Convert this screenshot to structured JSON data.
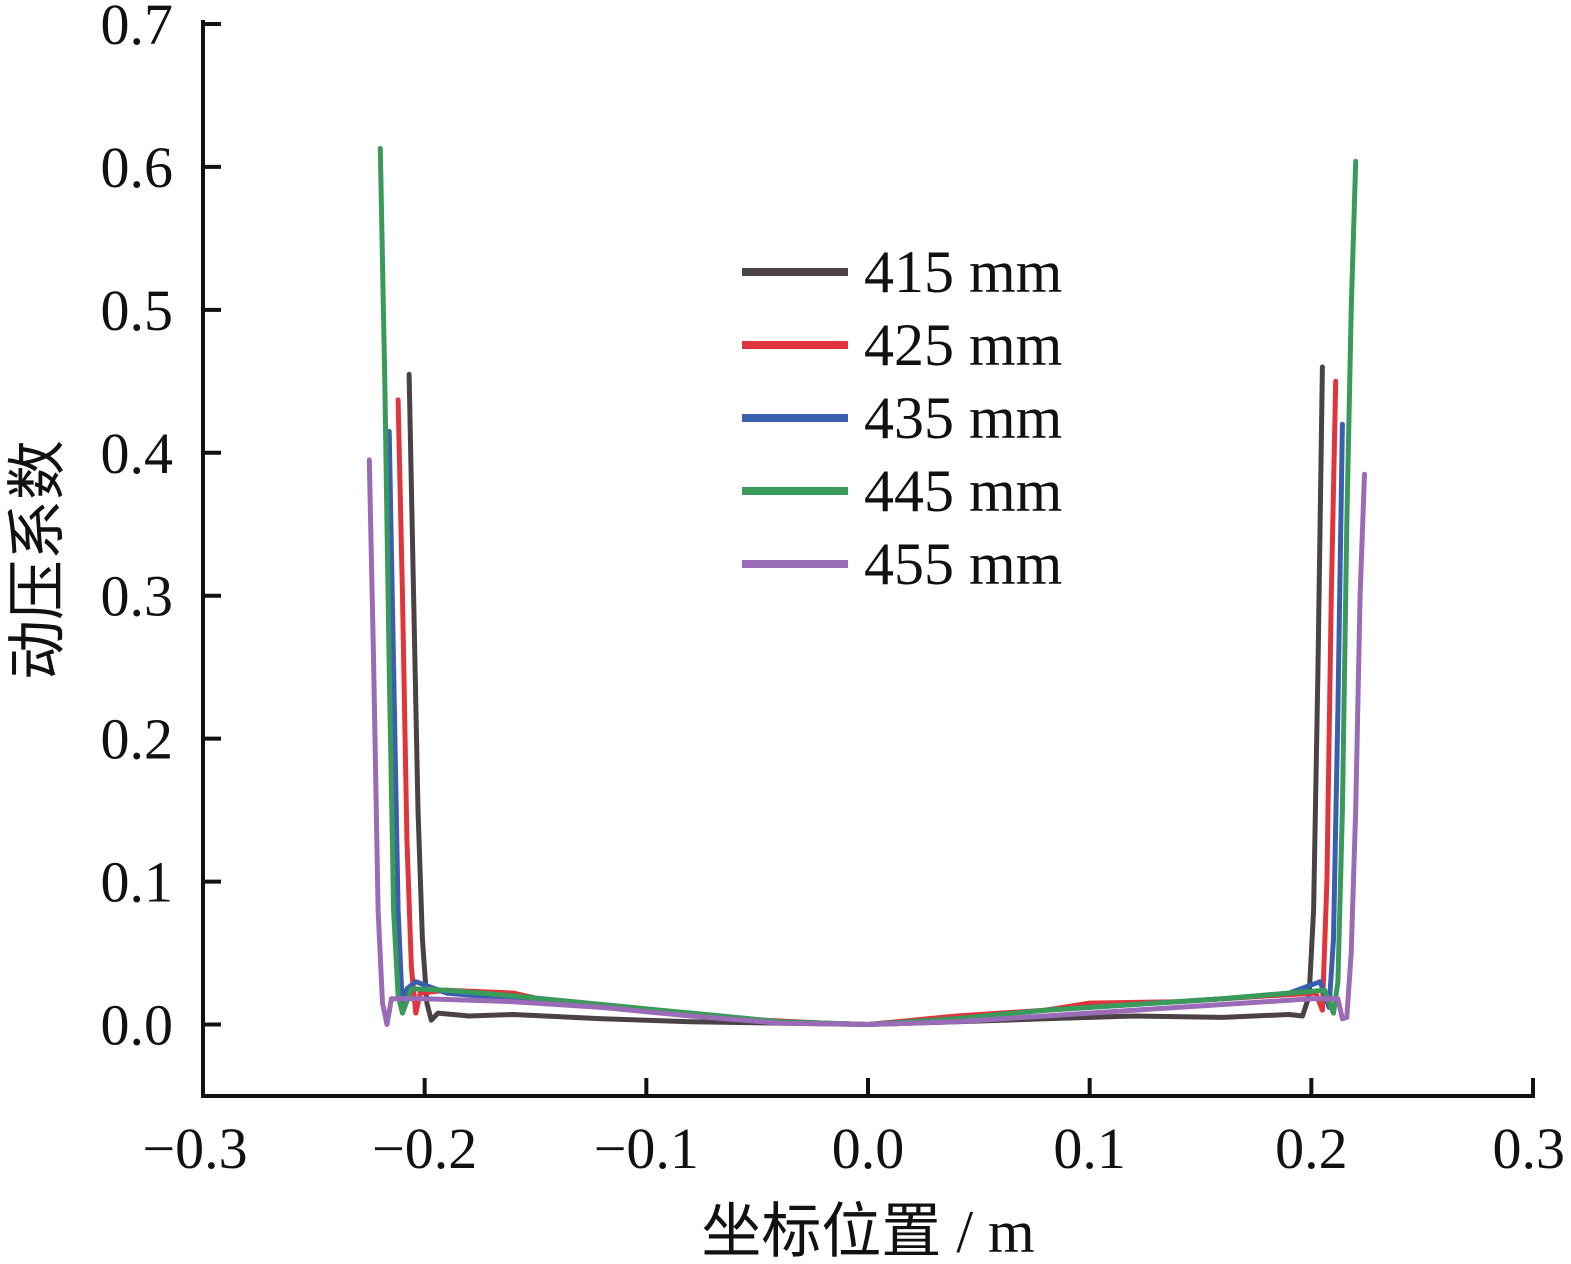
{
  "chart_data": {
    "type": "line",
    "xlabel": "坐标位置 / m",
    "ylabel": "动压系数",
    "xlim": [
      -0.3,
      0.3
    ],
    "ylim": [
      -0.05,
      0.7
    ],
    "x_ticks": [
      -0.3,
      -0.2,
      -0.1,
      0.0,
      0.1,
      0.2,
      0.3
    ],
    "x_tick_labels": [
      "−0.3",
      "−0.2",
      "−0.1",
      "0.0",
      "0.1",
      "0.2",
      "0.3"
    ],
    "y_ticks": [
      0.0,
      0.1,
      0.2,
      0.3,
      0.4,
      0.5,
      0.6,
      0.7
    ],
    "y_tick_labels": [
      "0.0",
      "0.1",
      "0.2",
      "0.3",
      "0.4",
      "0.5",
      "0.6",
      "0.7"
    ],
    "grid": false,
    "legend_position": "top-center",
    "series": [
      {
        "name": "415 mm",
        "color": "#4a4244",
        "points": [
          [
            -0.207,
            0.455
          ],
          [
            -0.205,
            0.3
          ],
          [
            -0.203,
            0.15
          ],
          [
            -0.201,
            0.06
          ],
          [
            -0.199,
            0.015
          ],
          [
            -0.197,
            0.003
          ],
          [
            -0.194,
            0.008
          ],
          [
            -0.18,
            0.006
          ],
          [
            -0.16,
            0.007
          ],
          [
            -0.12,
            0.004
          ],
          [
            -0.08,
            0.002
          ],
          [
            -0.04,
            0.001
          ],
          [
            0.0,
            0.0
          ],
          [
            0.04,
            0.002
          ],
          [
            0.08,
            0.004
          ],
          [
            0.12,
            0.006
          ],
          [
            0.16,
            0.005
          ],
          [
            0.19,
            0.007
          ],
          [
            0.196,
            0.006
          ],
          [
            0.199,
            0.02
          ],
          [
            0.201,
            0.08
          ],
          [
            0.203,
            0.25
          ],
          [
            0.205,
            0.46
          ]
        ]
      },
      {
        "name": "425 mm",
        "color": "#e0353c",
        "points": [
          [
            -0.212,
            0.437
          ],
          [
            -0.21,
            0.3
          ],
          [
            -0.208,
            0.13
          ],
          [
            -0.206,
            0.04
          ],
          [
            -0.204,
            0.008
          ],
          [
            -0.202,
            0.022
          ],
          [
            -0.19,
            0.024
          ],
          [
            -0.16,
            0.022
          ],
          [
            -0.14,
            0.015
          ],
          [
            -0.1,
            0.01
          ],
          [
            -0.06,
            0.004
          ],
          [
            -0.02,
            0.001
          ],
          [
            0.0,
            0.0
          ],
          [
            0.04,
            0.006
          ],
          [
            0.08,
            0.01
          ],
          [
            0.1,
            0.015
          ],
          [
            0.14,
            0.016
          ],
          [
            0.18,
            0.02
          ],
          [
            0.202,
            0.022
          ],
          [
            0.205,
            0.01
          ],
          [
            0.207,
            0.1
          ],
          [
            0.209,
            0.3
          ],
          [
            0.211,
            0.45
          ]
        ]
      },
      {
        "name": "435 mm",
        "color": "#3a5fb0",
        "points": [
          [
            -0.216,
            0.415
          ],
          [
            -0.214,
            0.25
          ],
          [
            -0.212,
            0.08
          ],
          [
            -0.21,
            0.01
          ],
          [
            -0.208,
            0.025
          ],
          [
            -0.204,
            0.03
          ],
          [
            -0.19,
            0.022
          ],
          [
            -0.16,
            0.018
          ],
          [
            -0.12,
            0.012
          ],
          [
            -0.08,
            0.008
          ],
          [
            -0.04,
            0.002
          ],
          [
            0.0,
            0.0
          ],
          [
            0.04,
            0.004
          ],
          [
            0.08,
            0.01
          ],
          [
            0.12,
            0.014
          ],
          [
            0.16,
            0.018
          ],
          [
            0.19,
            0.022
          ],
          [
            0.204,
            0.03
          ],
          [
            0.208,
            0.012
          ],
          [
            0.21,
            0.06
          ],
          [
            0.212,
            0.22
          ],
          [
            0.214,
            0.42
          ]
        ]
      },
      {
        "name": "445 mm",
        "color": "#3a9a5a",
        "points": [
          [
            -0.22,
            0.613
          ],
          [
            -0.218,
            0.45
          ],
          [
            -0.216,
            0.25
          ],
          [
            -0.214,
            0.08
          ],
          [
            -0.212,
            0.02
          ],
          [
            -0.21,
            0.008
          ],
          [
            -0.206,
            0.025
          ],
          [
            -0.19,
            0.024
          ],
          [
            -0.16,
            0.02
          ],
          [
            -0.12,
            0.014
          ],
          [
            -0.08,
            0.008
          ],
          [
            -0.04,
            0.002
          ],
          [
            0.0,
            0.0
          ],
          [
            0.04,
            0.004
          ],
          [
            0.08,
            0.01
          ],
          [
            0.12,
            0.014
          ],
          [
            0.16,
            0.018
          ],
          [
            0.19,
            0.022
          ],
          [
            0.206,
            0.024
          ],
          [
            0.21,
            0.008
          ],
          [
            0.212,
            0.03
          ],
          [
            0.214,
            0.15
          ],
          [
            0.216,
            0.35
          ],
          [
            0.218,
            0.5
          ],
          [
            0.22,
            0.604
          ]
        ]
      },
      {
        "name": "455 mm",
        "color": "#9a6cb8",
        "points": [
          [
            -0.225,
            0.395
          ],
          [
            -0.223,
            0.25
          ],
          [
            -0.221,
            0.08
          ],
          [
            -0.219,
            0.015
          ],
          [
            -0.217,
            0.0
          ],
          [
            -0.215,
            0.018
          ],
          [
            -0.2,
            0.018
          ],
          [
            -0.16,
            0.016
          ],
          [
            -0.12,
            0.012
          ],
          [
            -0.08,
            0.006
          ],
          [
            -0.04,
            0.001
          ],
          [
            0.0,
            0.0
          ],
          [
            0.04,
            0.002
          ],
          [
            0.08,
            0.006
          ],
          [
            0.12,
            0.01
          ],
          [
            0.16,
            0.014
          ],
          [
            0.2,
            0.018
          ],
          [
            0.212,
            0.018
          ],
          [
            0.214,
            0.004
          ],
          [
            0.216,
            0.005
          ],
          [
            0.218,
            0.05
          ],
          [
            0.22,
            0.15
          ],
          [
            0.222,
            0.3
          ],
          [
            0.224,
            0.385
          ]
        ]
      }
    ]
  }
}
